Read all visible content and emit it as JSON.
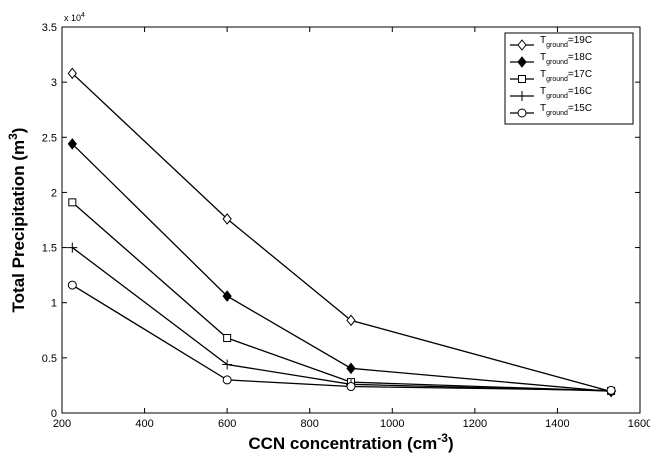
{
  "chart_data": {
    "type": "line",
    "x": [
      225,
      600,
      900,
      1530
    ],
    "series": [
      {
        "name": "T_ground=19C",
        "marker": "diamond",
        "values": [
          30800,
          17600,
          8400,
          1950
        ]
      },
      {
        "name": "T_ground=18C",
        "marker": "filled-diamond",
        "values": [
          24400,
          10600,
          4050,
          1950
        ]
      },
      {
        "name": "T_ground=17C",
        "marker": "square",
        "values": [
          19100,
          6800,
          2800,
          2000
        ]
      },
      {
        "name": "T_ground=16C",
        "marker": "plus",
        "values": [
          15000,
          4400,
          2600,
          2000
        ]
      },
      {
        "name": "T_ground=15C",
        "marker": "circle",
        "values": [
          11600,
          3000,
          2400,
          2050
        ]
      }
    ],
    "xlim": [
      200,
      1600
    ],
    "ylim": [
      0,
      35000
    ],
    "xticks": [
      200,
      400,
      600,
      800,
      1000,
      1200,
      1400,
      1600
    ],
    "yticks": [
      0,
      5000,
      10000,
      15000,
      20000,
      25000,
      30000,
      35000
    ],
    "yticklabels": [
      "0",
      "0.5",
      "1",
      "1.5",
      "2",
      "2.5",
      "3",
      "3.5"
    ],
    "y_multiplier": "x 10",
    "y_multiplier_exp": "4",
    "xlabel": "CCN concentration (cm",
    "xlabel_sup": "-3",
    "xlabel_end": ")",
    "ylabel": "Total Precipitation (m",
    "ylabel_sup": "3",
    "ylabel_end": ")",
    "legend_position": "top-right",
    "legend_entries": [
      {
        "prefix": "T",
        "sub": "ground",
        "suffix": "=19C"
      },
      {
        "prefix": "T",
        "sub": "ground",
        "suffix": "=18C"
      },
      {
        "prefix": "T",
        "sub": "ground",
        "suffix": "=17C"
      },
      {
        "prefix": "T",
        "sub": "ground",
        "suffix": "=16C"
      },
      {
        "prefix": "T",
        "sub": "ground",
        "suffix": "=15C"
      }
    ],
    "grid": false
  }
}
